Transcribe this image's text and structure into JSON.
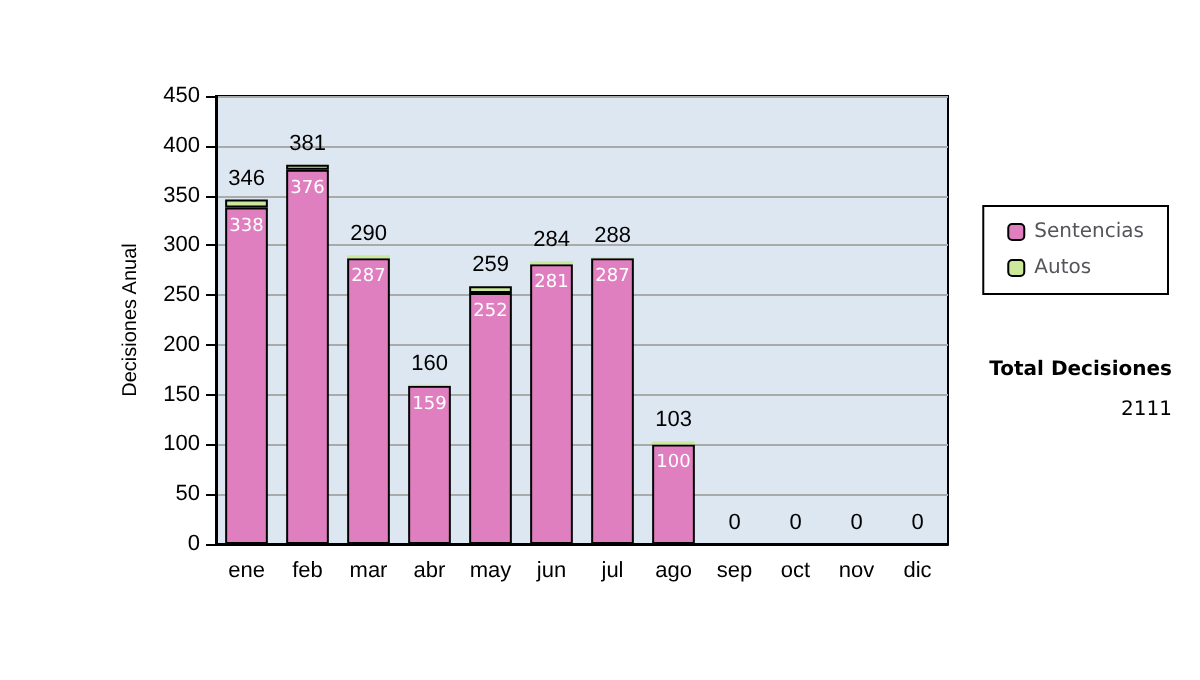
{
  "chart_data": {
    "type": "bar",
    "ylabel": "Decisiones Anual",
    "categories": [
      "ene",
      "feb",
      "mar",
      "abr",
      "may",
      "jun",
      "jul",
      "ago",
      "sep",
      "oct",
      "nov",
      "dic"
    ],
    "series": [
      {
        "name": "Sentencias",
        "color": "#e07fc0",
        "values": [
          338,
          376,
          287,
          159,
          252,
          281,
          287,
          100,
          0,
          0,
          0,
          0
        ],
        "value_labels": [
          "338",
          "376",
          "287",
          "159",
          "252",
          "281",
          "287",
          "100",
          null,
          null,
          null,
          null
        ]
      },
      {
        "name": "Autos",
        "color": "#cce89a",
        "values": [
          8,
          5,
          3,
          1,
          7,
          3,
          1,
          3,
          0,
          0,
          0,
          0
        ]
      }
    ],
    "stacked": true,
    "totals": [
      "346",
      "381",
      "290",
      "160",
      "259",
      "284",
      "288",
      "103",
      "0",
      "0",
      "0",
      "0"
    ],
    "ylim": [
      0,
      450
    ],
    "yticks": [
      0,
      50,
      100,
      150,
      200,
      250,
      300,
      350,
      400,
      450
    ],
    "grid": "y",
    "legend": "right",
    "annotations": [
      "Total Decisiones",
      "2111"
    ]
  }
}
